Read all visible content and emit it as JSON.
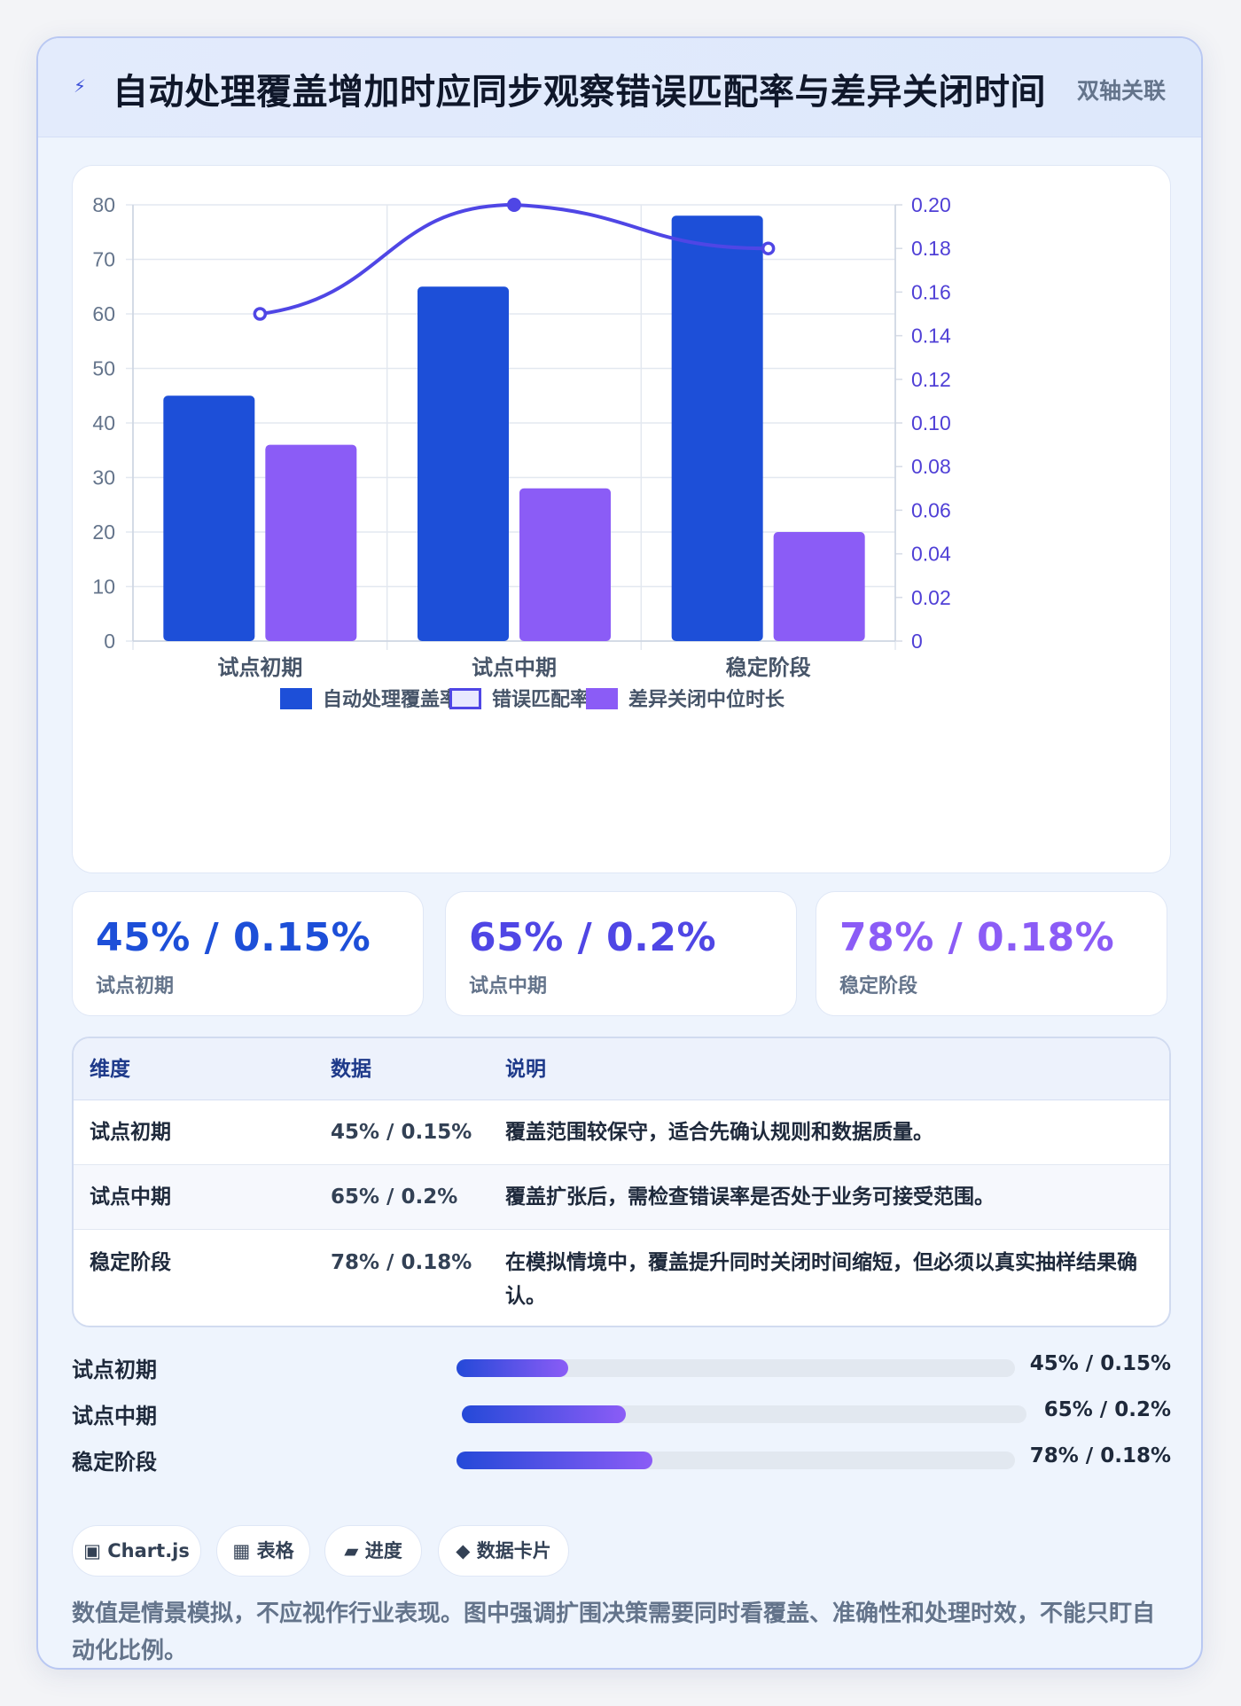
{
  "header": {
    "icon": "bolt-icon",
    "title": "自动处理覆盖增加时应同步观察错误匹配率与差异关闭时间",
    "tag": "双轴关联"
  },
  "colors": {
    "coverage": "#1d4fd8",
    "error_rate": "#4f46e5",
    "close_time": "#8b5cf6"
  },
  "chart_data": {
    "type": "bar",
    "categories": [
      "试点初期",
      "试点中期",
      "稳定阶段"
    ],
    "series": [
      {
        "name": "自动处理覆盖率",
        "type": "bar",
        "axis": "left",
        "values": [
          45,
          65,
          78
        ]
      },
      {
        "name": "错误匹配率",
        "type": "line",
        "axis": "right",
        "values": [
          0.15,
          0.2,
          0.18
        ]
      },
      {
        "name": "差异关闭中位时长",
        "type": "bar",
        "axis": "left",
        "values": [
          36,
          28,
          20
        ]
      }
    ],
    "ylim": [
      0,
      80
    ],
    "y_ticks": [
      "80",
      "70",
      "60",
      "50",
      "40",
      "30",
      "20",
      "10",
      "0"
    ],
    "y2lim": [
      0,
      0.2
    ],
    "y2_ticks": [
      "0.20",
      "0.18",
      "0.16",
      "0.14",
      "0.12",
      "0.10",
      "0.08",
      "0.06",
      "0.04",
      "0.02",
      "0"
    ],
    "grid": true,
    "legend_position": "bottom"
  },
  "stats": [
    {
      "value": "45% / 0.15%",
      "label": "试点初期",
      "color": "#1d4fd8"
    },
    {
      "value": "65% / 0.2%",
      "label": "试点中期",
      "color": "#4f46e5"
    },
    {
      "value": "78% / 0.18%",
      "label": "稳定阶段",
      "color": "#8b5cf6"
    }
  ],
  "table": {
    "headers": [
      "维度",
      "数据",
      "说明"
    ],
    "rows": [
      [
        "试点初期",
        "45% / 0.15%",
        "覆盖范围较保守，适合先确认规则和数据质量。"
      ],
      [
        "试点中期",
        "65% / 0.2%",
        "覆盖扩张后，需检查错误率是否处于业务可接受范围。"
      ],
      [
        "稳定阶段",
        "78% / 0.18%",
        "在模拟情境中，覆盖提升同时关闭时间缩短，但必须以真实抽样结果确认。"
      ]
    ]
  },
  "progress": [
    {
      "label": "试点初期",
      "value": "45% / 0.15%",
      "fill": 0.2
    },
    {
      "label": "试点中期",
      "value": "65% / 0.2%",
      "fill": 0.29
    },
    {
      "label": "稳定阶段",
      "value": "78% / 0.18%",
      "fill": 0.35
    }
  ],
  "chips": [
    {
      "icon": "square-icon",
      "glyph": "▣",
      "label": "Chart.js"
    },
    {
      "icon": "grid-icon",
      "glyph": "▦",
      "label": "表格"
    },
    {
      "icon": "parallelogram-icon",
      "glyph": "▰",
      "label": "进度"
    },
    {
      "icon": "diamond-icon",
      "glyph": "◆",
      "label": "数据卡片"
    }
  ],
  "note": "数值是情景模拟，不应视作行业表现。图中强调扩围决策需要同时看覆盖、准确性和处理时效，不能只盯自动化比例。"
}
